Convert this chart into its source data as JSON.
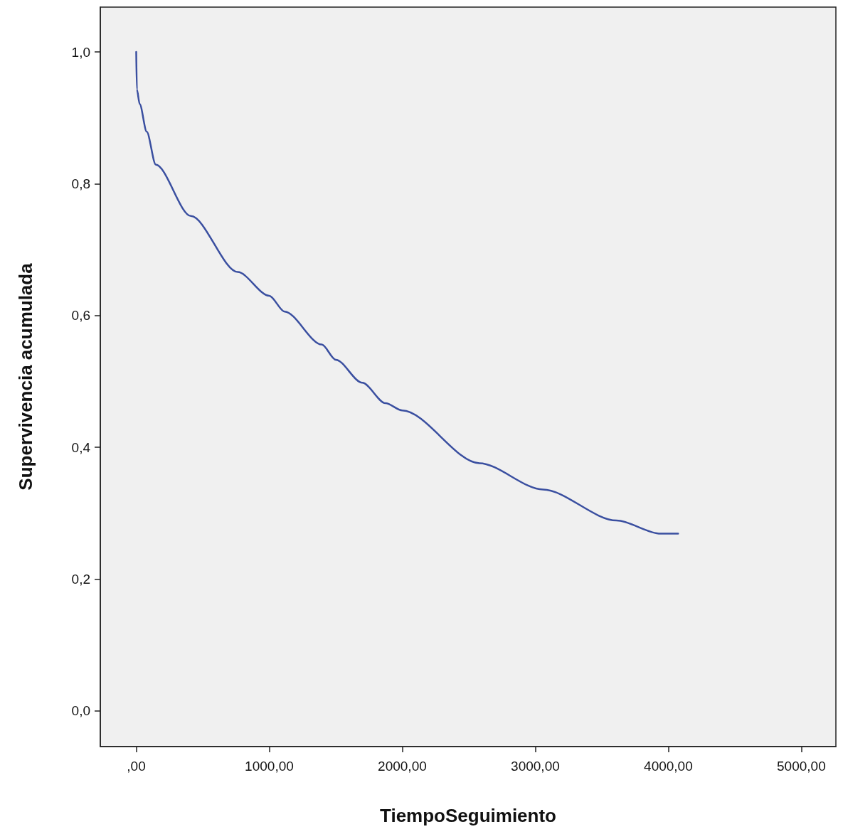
{
  "chart_data": {
    "type": "line",
    "xlabel": "TiempoSeguimiento",
    "ylabel": "Supervivencia acumulada",
    "x": [
      0,
      5,
      26,
      79,
      147,
      411,
      763,
      1000,
      1116,
      1395,
      1500,
      1700,
      1874,
      2000,
      2579,
      3058,
      3611,
      3942,
      4074
    ],
    "series": [
      {
        "color": "#3a4fa0",
        "values": [
          1.0,
          0.943,
          0.921,
          0.879,
          0.829,
          0.751,
          0.666,
          0.63,
          0.606,
          0.556,
          0.533,
          0.498,
          0.467,
          0.456,
          0.376,
          0.336,
          0.289,
          0.269,
          0.269
        ]
      }
    ],
    "xlim": [
      -270,
      5260
    ],
    "ylim": [
      -0.054,
      1.068
    ],
    "xticks": [
      {
        "value": 0,
        "label": ",00"
      },
      {
        "value": 1000,
        "label": "1000,00"
      },
      {
        "value": 2000,
        "label": "2000,00"
      },
      {
        "value": 3000,
        "label": "3000,00"
      },
      {
        "value": 4000,
        "label": "4000,00"
      },
      {
        "value": 5000,
        "label": "5000,00"
      }
    ],
    "yticks": [
      {
        "value": 0,
        "label": "0,0"
      },
      {
        "value": 0.2,
        "label": "0,2"
      },
      {
        "value": 0.4,
        "label": "0,4"
      },
      {
        "value": 0.6,
        "label": "0,6"
      },
      {
        "value": 0.8,
        "label": "0,8"
      },
      {
        "value": 1,
        "label": "1,0"
      }
    ],
    "grid": false,
    "marker": "none",
    "line_style": "solid"
  }
}
